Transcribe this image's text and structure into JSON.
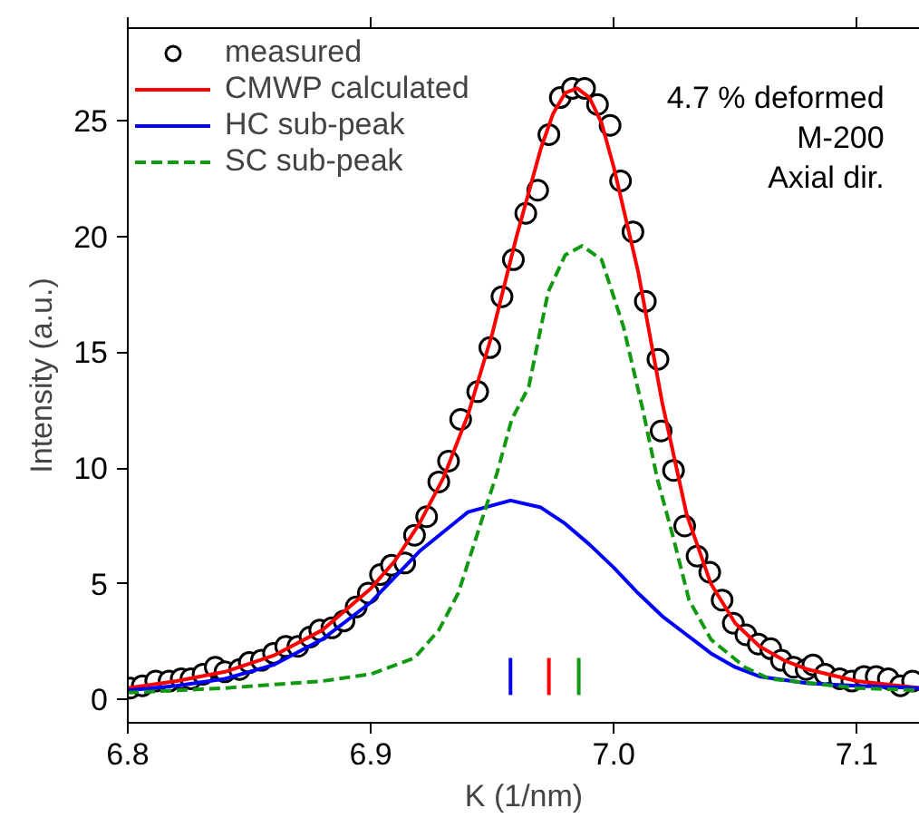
{
  "chart_data": {
    "type": "line",
    "xlabel": "K (1/nm)",
    "ylabel": "Intensity (a.u.)",
    "xlim": [
      6.8,
      7.126
    ],
    "xticks": [
      6.8,
      6.9,
      {
        "value": 7.0,
        "label": "7.0"
      },
      7.1
    ],
    "ylim": [
      -1,
      29
    ],
    "yticks": [
      0,
      5,
      10,
      15,
      20,
      25
    ],
    "grid": false,
    "legend": "top left",
    "annotations": [
      "4.7 % deformed",
      "M-200",
      "Axial dir."
    ],
    "series": [
      {
        "name": "measured",
        "type": "scatter",
        "marker": "circle",
        "color": "#000000",
        "x": [
          6.801,
          6.806,
          6.8115,
          6.817,
          6.822,
          6.826,
          6.831,
          6.836,
          6.84,
          6.846,
          6.85,
          6.855,
          6.86,
          6.865,
          6.87,
          6.875,
          6.879,
          6.884,
          6.889,
          6.894,
          6.899,
          6.904,
          6.9085,
          6.914,
          6.918,
          6.923,
          6.928,
          6.932,
          6.937,
          6.944,
          6.949,
          6.954,
          6.9587,
          6.9638,
          6.9687,
          6.9733,
          6.978,
          6.983,
          6.988,
          6.9933,
          6.9985,
          7.0028,
          7.0079,
          7.013,
          7.0182,
          7.0195,
          7.0246,
          7.0292,
          7.0343,
          7.0395,
          7.0446,
          7.0492,
          7.0544,
          7.0595,
          7.0646,
          7.069,
          7.074,
          7.0792,
          7.082,
          7.087,
          7.093,
          7.098,
          7.103,
          7.108,
          7.113,
          7.118,
          7.123
        ],
        "values": [
          0.5,
          0.6,
          0.8,
          0.8,
          0.9,
          0.9,
          1.1,
          1.4,
          1.2,
          1.3,
          1.6,
          1.7,
          2.0,
          2.3,
          2.3,
          2.7,
          3.0,
          3.1,
          3.4,
          4.0,
          4.6,
          5.4,
          5.8,
          5.9,
          7.1,
          7.9,
          9.4,
          10.3,
          12.1,
          13.3,
          15.2,
          17.4,
          19.0,
          21.0,
          22.0,
          24.4,
          26.0,
          26.4,
          26.4,
          25.7,
          24.8,
          22.4,
          20.2,
          17.2,
          14.7,
          11.6,
          9.9,
          7.5,
          6.2,
          5.5,
          4.3,
          3.3,
          2.8,
          2.4,
          2.2,
          1.7,
          1.4,
          1.3,
          1.5,
          1.1,
          0.9,
          0.8,
          1.0,
          1.0,
          0.9,
          0.6,
          0.8
        ]
      },
      {
        "name": "CMWP calculated",
        "line_style": "solid",
        "color": "#ff0000",
        "x": [
          6.8,
          6.82,
          6.84,
          6.86,
          6.88,
          6.9,
          6.91,
          6.92,
          6.93,
          6.94,
          6.95,
          6.96,
          6.97,
          6.975,
          6.98,
          6.985,
          6.99,
          6.995,
          7.0,
          7.01,
          7.02,
          7.03,
          7.04,
          7.05,
          7.06,
          7.07,
          7.08,
          7.1,
          7.126
        ],
        "values": [
          0.5,
          0.8,
          1.2,
          1.9,
          3.0,
          4.8,
          6.0,
          7.6,
          9.6,
          12.3,
          15.8,
          20.0,
          23.8,
          25.3,
          26.2,
          26.4,
          26.0,
          24.9,
          23.0,
          18.5,
          12.8,
          8.0,
          5.0,
          3.3,
          2.3,
          1.7,
          1.3,
          0.8,
          0.5
        ]
      },
      {
        "name": "HC sub-peak",
        "line_style": "solid",
        "color": "#0000ff",
        "x": [
          6.8,
          6.82,
          6.84,
          6.86,
          6.88,
          6.9,
          6.92,
          6.94,
          6.9575,
          6.97,
          6.98,
          6.99,
          7.0,
          7.01,
          7.02,
          7.03,
          7.04,
          7.05,
          7.06,
          7.08,
          7.1,
          7.126
        ],
        "values": [
          0.4,
          0.6,
          0.9,
          1.5,
          2.6,
          4.2,
          6.4,
          8.1,
          8.6,
          8.3,
          7.6,
          6.7,
          5.7,
          4.6,
          3.6,
          2.8,
          2.0,
          1.4,
          1.0,
          0.7,
          0.6,
          0.5
        ]
      },
      {
        "name": "SC sub-peak",
        "line_style": "dashed",
        "color": "#119911",
        "x": [
          6.8,
          6.84,
          6.88,
          6.9,
          6.918,
          6.928,
          6.936,
          6.944,
          6.952,
          6.958,
          6.965,
          6.973,
          6.98,
          6.987,
          6.995,
          7.004,
          7.012,
          7.018,
          7.024,
          7.031,
          7.04,
          7.054,
          7.064,
          7.1,
          7.126
        ],
        "values": [
          0.3,
          0.5,
          0.8,
          1.1,
          1.8,
          3.0,
          4.6,
          7.2,
          9.8,
          12.1,
          13.5,
          17.6,
          19.2,
          19.6,
          19.0,
          16.1,
          12.5,
          9.5,
          7.2,
          4.3,
          2.6,
          1.4,
          0.9,
          0.5,
          0.4
        ]
      },
      {
        "type": "line",
        "line_style": "solid",
        "color": "#0000ff",
        "x": [
          6.9575,
          6.9575
        ],
        "values": [
          0.2,
          1.8
        ]
      },
      {
        "type": "line",
        "line_style": "solid",
        "color": "#ff0000",
        "x": [
          6.9733,
          6.9733
        ],
        "values": [
          0.2,
          1.8
        ]
      },
      {
        "type": "line",
        "line_style": "solid",
        "color": "#119911",
        "x": [
          6.9856,
          6.9856
        ],
        "values": [
          0.2,
          1.8
        ]
      }
    ]
  }
}
